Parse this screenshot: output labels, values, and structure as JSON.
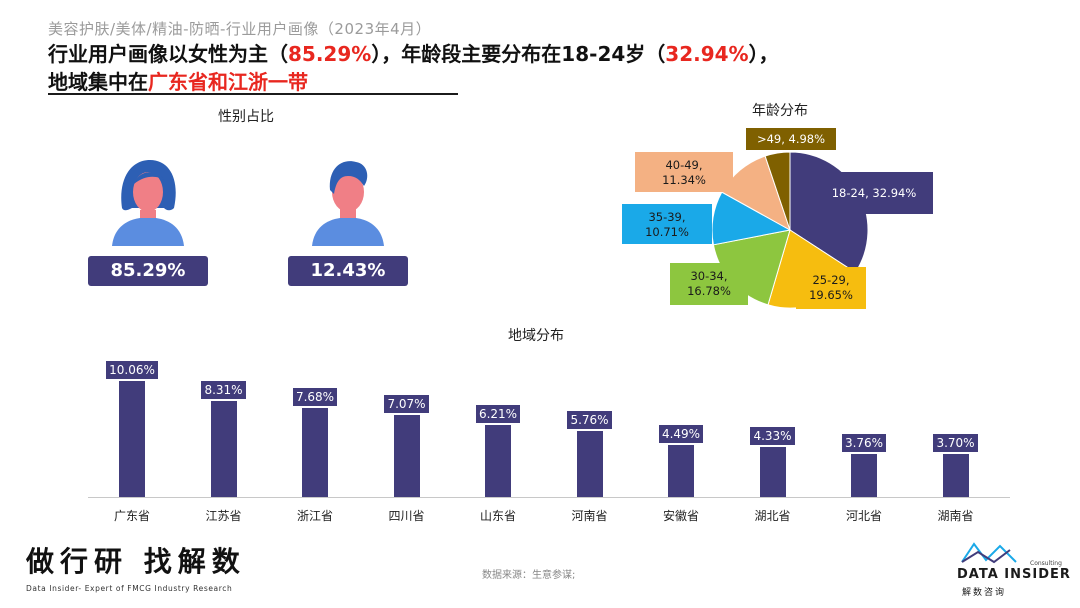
{
  "header": {
    "subtitle": "美容护肤/美体/精油-防晒-行业用户画像（2023年4月）",
    "line1_prefix": "行业用户画像以女性为主（",
    "line1_female_pct": "85.29%",
    "line1_mid": "），年龄段主要分布在18-24岁（",
    "line1_age_pct": "32.94%",
    "line1_suffix": "），",
    "line2_prefix": "地域集中在",
    "line2_highlight": "广东省和江浙一带"
  },
  "gender": {
    "title": "性别占比",
    "female_pct": "85.29%",
    "male_pct": "12.43%",
    "female_icon": "female-avatar-icon",
    "male_icon": "male-avatar-icon"
  },
  "age": {
    "title": "年龄分布"
  },
  "region": {
    "title": "地域分布"
  },
  "footer": {
    "brand_cn": "做行研 找解数",
    "brand_en": "Data Insider- Expert of FMCG Industry Research",
    "source": "数据来源：生意参谋;",
    "logo_text": "DATA INSIDER",
    "logo_sub": "解数咨询",
    "logo_consult": "Consulting"
  },
  "colors": {
    "primary": "#413c7b",
    "accent_red": "#e8271f",
    "pie": [
      "#413c7b",
      "#f6bd0f",
      "#8dc63f",
      "#1aa9e8",
      "#f4b183",
      "#7f6000"
    ]
  },
  "chart_data": [
    {
      "type": "pie",
      "title": "年龄分布",
      "categories": [
        "18-24",
        "25-29",
        "30-34",
        "35-39",
        "40-49",
        ">49"
      ],
      "values": [
        32.94,
        19.65,
        16.78,
        10.71,
        11.34,
        4.98
      ],
      "labels": [
        "18-24, 32.94%",
        "25-29, 19.65%",
        "30-34, 16.78%",
        "35-39, 10.71%",
        "40-49, 11.34%",
        ">49, 4.98%"
      ]
    },
    {
      "type": "bar",
      "title": "地域分布",
      "categories": [
        "广东省",
        "江苏省",
        "浙江省",
        "四川省",
        "山东省",
        "河南省",
        "安徽省",
        "湖北省",
        "河北省",
        "湖南省"
      ],
      "values": [
        10.06,
        8.31,
        7.68,
        7.07,
        6.21,
        5.76,
        4.49,
        4.33,
        3.76,
        3.7
      ],
      "labels": [
        "10.06%",
        "8.31%",
        "7.68%",
        "7.07%",
        "6.21%",
        "5.76%",
        "4.49%",
        "4.33%",
        "3.76%",
        "3.70%"
      ],
      "ylim": [
        0,
        10.06
      ]
    }
  ]
}
